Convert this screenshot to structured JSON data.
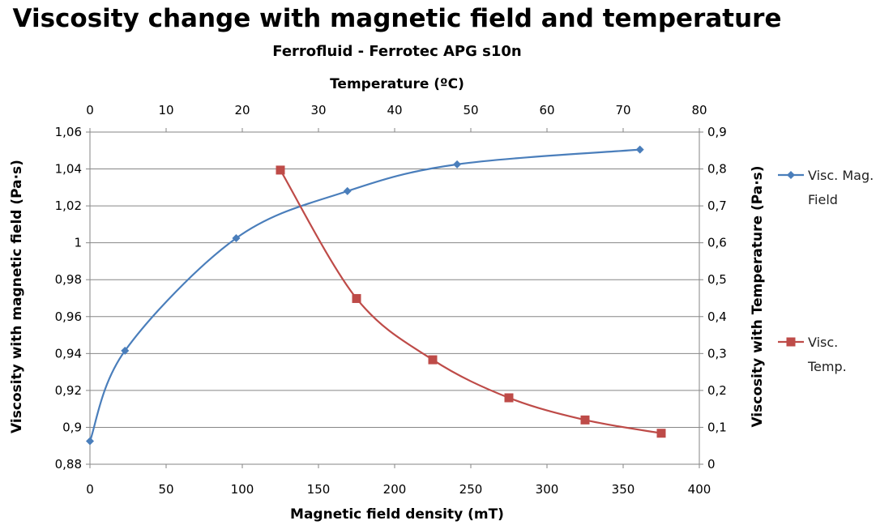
{
  "chart_data": {
    "type": "line",
    "title": "Viscosity change with magnetic field and temperature",
    "subtitle": "Ferrofluid - Ferrotec APG s10n",
    "x_primary": {
      "label": "Magnetic field density (mT)",
      "range": [
        0,
        400
      ],
      "ticks": [
        0,
        50,
        100,
        150,
        200,
        250,
        300,
        350,
        400
      ],
      "tick_labels": [
        "0",
        "50",
        "100",
        "150",
        "200",
        "250",
        "300",
        "350",
        "400"
      ]
    },
    "x_secondary": {
      "label": "Temperature (ºC)",
      "range": [
        0,
        80
      ],
      "ticks": [
        0,
        10,
        20,
        30,
        40,
        50,
        60,
        70,
        80
      ],
      "tick_labels": [
        "0",
        "10",
        "20",
        "30",
        "40",
        "50",
        "60",
        "70",
        "80"
      ]
    },
    "y_primary": {
      "label": "Viscosity with magnetic field (Pa·s)",
      "range": [
        0.88,
        1.06
      ],
      "ticks": [
        0.88,
        0.9,
        0.92,
        0.94,
        0.96,
        0.98,
        1.0,
        1.02,
        1.04,
        1.06
      ],
      "tick_labels": [
        "0,88",
        "0,9",
        "0,92",
        "0,94",
        "0,96",
        "0,98",
        "1",
        "1,02",
        "1,04",
        "1,06"
      ]
    },
    "y_secondary": {
      "label": "Viscosity with Temperature (Pa·s)",
      "range": [
        0,
        0.9
      ],
      "ticks": [
        0,
        0.1,
        0.2,
        0.3,
        0.4,
        0.5,
        0.6,
        0.7,
        0.8,
        0.9
      ],
      "tick_labels": [
        "0",
        "0,1",
        "0,2",
        "0,3",
        "0,4",
        "0,5",
        "0,6",
        "0,7",
        "0,8",
        "0,9"
      ]
    },
    "grid": "horizontal",
    "legend_position": "right",
    "series": [
      {
        "name": "Visc. Mag. Field",
        "legend_lines": [
          "Visc. Mag.",
          "Field"
        ],
        "axes": "primary",
        "color": "#4a7ebb",
        "marker": "diamond",
        "x": [
          0,
          23,
          96,
          169,
          241,
          361
        ],
        "y": [
          0.8925,
          0.9415,
          1.0025,
          1.028,
          1.0425,
          1.0505
        ]
      },
      {
        "name": "Visc. Temp.",
        "legend_lines": [
          "Visc.",
          "Temp."
        ],
        "axes": "secondary",
        "color": "#be4b48",
        "marker": "square",
        "x": [
          25,
          35,
          45,
          55,
          65,
          75
        ],
        "y": [
          0.797,
          0.449,
          0.283,
          0.18,
          0.12,
          0.084
        ]
      }
    ]
  }
}
